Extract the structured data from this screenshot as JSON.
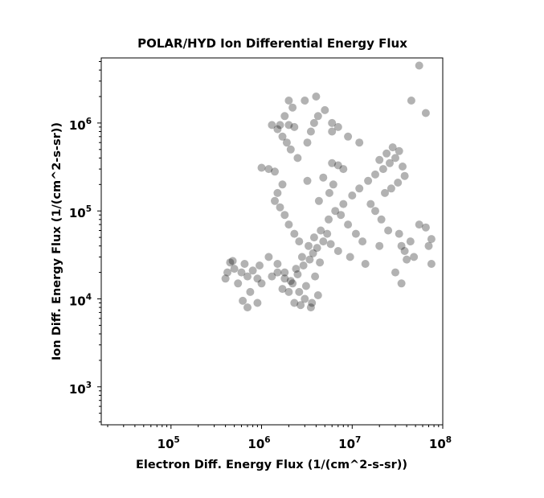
{
  "chart_data": {
    "type": "scatter",
    "title": "POLAR/HYD  Ion Differential Energy Flux",
    "xlabel": "Electron Diff. Energy Flux (1/(cm^2-s-sr))",
    "ylabel": "Ion Diff. Energy Flux (1/(cm^2-s-sr))",
    "x_scale": "log",
    "y_scale": "log",
    "xlim": [
      17000,
      100000000
    ],
    "ylim": [
      370,
      5500000
    ],
    "x_ticks": [
      {
        "base": "10",
        "exp": "5",
        "value": 100000
      },
      {
        "base": "10",
        "exp": "6",
        "value": 1000000
      },
      {
        "base": "10",
        "exp": "7",
        "value": 10000000
      },
      {
        "base": "10",
        "exp": "8",
        "value": 100000000
      }
    ],
    "y_ticks": [
      {
        "base": "10",
        "exp": "3",
        "value": 1000
      },
      {
        "base": "10",
        "exp": "4",
        "value": 10000
      },
      {
        "base": "10",
        "exp": "5",
        "value": 100000
      },
      {
        "base": "10",
        "exp": "6",
        "value": 1000000
      }
    ],
    "grid": false,
    "marker_color": "#000000",
    "marker_opacity": 0.3,
    "points": [
      [
        600000,
        20000
      ],
      [
        700000,
        18000
      ],
      [
        500000,
        22000
      ],
      [
        650000,
        25000
      ],
      [
        550000,
        15000
      ],
      [
        750000,
        12000
      ],
      [
        480000,
        27000
      ],
      [
        800000,
        21000
      ],
      [
        620000,
        9500
      ],
      [
        900000,
        17000
      ],
      [
        1200000,
        30000
      ],
      [
        1500000,
        25000
      ],
      [
        1800000,
        20000
      ],
      [
        2200000,
        15000
      ],
      [
        2600000,
        12000
      ],
      [
        3000000,
        10000
      ],
      [
        2400000,
        22000
      ],
      [
        2800000,
        30000
      ],
      [
        3300000,
        40000
      ],
      [
        3800000,
        50000
      ],
      [
        4500000,
        60000
      ],
      [
        5500000,
        80000
      ],
      [
        6500000,
        100000
      ],
      [
        8000000,
        120000
      ],
      [
        10000000,
        150000
      ],
      [
        12000000,
        180000
      ],
      [
        15000000,
        220000
      ],
      [
        18000000,
        260000
      ],
      [
        22000000,
        300000
      ],
      [
        26000000,
        350000
      ],
      [
        30000000,
        400000
      ],
      [
        33000000,
        480000
      ],
      [
        28000000,
        530000
      ],
      [
        24000000,
        450000
      ],
      [
        20000000,
        380000
      ],
      [
        2000000,
        1800000
      ],
      [
        2200000,
        1500000
      ],
      [
        1800000,
        1200000
      ],
      [
        1600000,
        950000
      ],
      [
        1500000,
        850000
      ],
      [
        1700000,
        700000
      ],
      [
        1900000,
        600000
      ],
      [
        2100000,
        500000
      ],
      [
        2500000,
        400000
      ],
      [
        1200000,
        300000
      ],
      [
        1000000,
        310000
      ],
      [
        1400000,
        280000
      ],
      [
        3200000,
        600000
      ],
      [
        3500000,
        800000
      ],
      [
        3800000,
        1000000
      ],
      [
        4200000,
        1200000
      ],
      [
        5000000,
        1400000
      ],
      [
        6000000,
        350000
      ],
      [
        7000000,
        330000
      ],
      [
        8000000,
        300000
      ],
      [
        9000000,
        700000
      ],
      [
        12000000,
        600000
      ],
      [
        3000000,
        1800000
      ],
      [
        4000000,
        2000000
      ],
      [
        6000000,
        800000
      ],
      [
        1700000,
        13000
      ],
      [
        2100000,
        16000
      ],
      [
        2500000,
        19000
      ],
      [
        2900000,
        24000
      ],
      [
        3400000,
        28000
      ],
      [
        3700000,
        33000
      ],
      [
        4100000,
        38000
      ],
      [
        4800000,
        45000
      ],
      [
        5300000,
        55000
      ],
      [
        5800000,
        42000
      ],
      [
        4400000,
        26000
      ],
      [
        3900000,
        18000
      ],
      [
        3100000,
        14000
      ],
      [
        3600000,
        9000
      ],
      [
        4200000,
        11000
      ],
      [
        2700000,
        8500
      ],
      [
        3500000,
        8000
      ],
      [
        2300000,
        9000
      ],
      [
        2000000,
        12000
      ],
      [
        1800000,
        17000
      ],
      [
        1500000,
        20000
      ],
      [
        1300000,
        18000
      ],
      [
        2600000,
        45000
      ],
      [
        2300000,
        55000
      ],
      [
        2000000,
        70000
      ],
      [
        1800000,
        90000
      ],
      [
        1600000,
        110000
      ],
      [
        1400000,
        130000
      ],
      [
        1500000,
        160000
      ],
      [
        1700000,
        200000
      ],
      [
        7500000,
        90000
      ],
      [
        9000000,
        70000
      ],
      [
        11000000,
        55000
      ],
      [
        13000000,
        45000
      ],
      [
        7000000,
        35000
      ],
      [
        9500000,
        30000
      ],
      [
        14000000,
        25000
      ],
      [
        20000000,
        40000
      ],
      [
        25000000,
        60000
      ],
      [
        30000000,
        20000
      ],
      [
        35000000,
        15000
      ],
      [
        40000000,
        28000
      ],
      [
        16000000,
        120000
      ],
      [
        18000000,
        100000
      ],
      [
        21000000,
        80000
      ],
      [
        3200000,
        220000
      ],
      [
        4800000,
        240000
      ],
      [
        6200000,
        200000
      ],
      [
        5600000,
        160000
      ],
      [
        4300000,
        130000
      ],
      [
        36000000,
        320000
      ],
      [
        38000000,
        250000
      ],
      [
        32000000,
        210000
      ],
      [
        27000000,
        180000
      ],
      [
        23000000,
        160000
      ],
      [
        55000000,
        4500000
      ],
      [
        45000000,
        1800000
      ],
      [
        65000000,
        1300000
      ],
      [
        55000000,
        70000
      ],
      [
        65000000,
        65000
      ],
      [
        75000000,
        48000
      ],
      [
        70000000,
        40000
      ],
      [
        75000000,
        25000
      ],
      [
        48000000,
        30000
      ],
      [
        44000000,
        45000
      ],
      [
        38000000,
        35000
      ],
      [
        35000000,
        40000
      ],
      [
        33000000,
        55000
      ],
      [
        400000,
        17000
      ],
      [
        450000,
        26000
      ],
      [
        420000,
        20000
      ],
      [
        700000,
        8000
      ],
      [
        900000,
        9000
      ],
      [
        1000000,
        15000
      ],
      [
        950000,
        24000
      ],
      [
        2000000,
        950000
      ],
      [
        2300000,
        900000
      ],
      [
        1300000,
        950000
      ],
      [
        6000000,
        1000000
      ],
      [
        7000000,
        900000
      ]
    ]
  }
}
